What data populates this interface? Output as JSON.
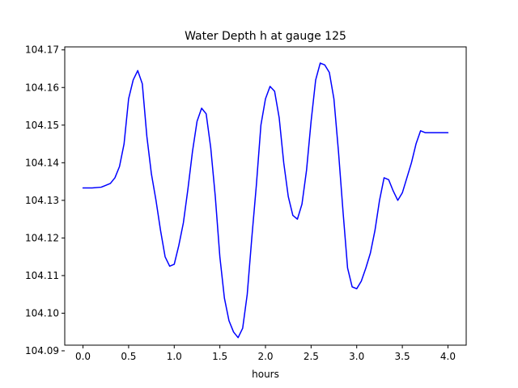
{
  "chart_data": {
    "type": "line",
    "title": "Water Depth h at gauge 125",
    "xlabel": "hours",
    "ylabel": "",
    "xlim": [
      -0.2,
      4.2
    ],
    "ylim": [
      104.0915,
      104.1708
    ],
    "xticks": [
      0.0,
      0.5,
      1.0,
      1.5,
      2.0,
      2.5,
      3.0,
      3.5,
      4.0
    ],
    "xtick_labels": [
      "0.0",
      "0.5",
      "1.0",
      "1.5",
      "2.0",
      "2.5",
      "3.0",
      "3.5",
      "4.0"
    ],
    "yticks": [
      104.09,
      104.1,
      104.11,
      104.12,
      104.13,
      104.14,
      104.15,
      104.16,
      104.17
    ],
    "ytick_labels": [
      "104.09",
      "104.10",
      "104.11",
      "104.12",
      "104.13",
      "104.14",
      "104.15",
      "104.16",
      "104.17"
    ],
    "grid": false,
    "series": [
      {
        "color": "#0000ff",
        "x": [
          0.0,
          0.1,
          0.2,
          0.3,
          0.35,
          0.4,
          0.45,
          0.5,
          0.55,
          0.6,
          0.65,
          0.7,
          0.75,
          0.8,
          0.85,
          0.9,
          0.95,
          1.0,
          1.05,
          1.1,
          1.15,
          1.2,
          1.25,
          1.3,
          1.35,
          1.4,
          1.45,
          1.5,
          1.55,
          1.6,
          1.65,
          1.7,
          1.75,
          1.8,
          1.85,
          1.9,
          1.95,
          2.0,
          2.05,
          2.1,
          2.15,
          2.2,
          2.25,
          2.3,
          2.35,
          2.4,
          2.45,
          2.5,
          2.55,
          2.6,
          2.65,
          2.7,
          2.75,
          2.8,
          2.85,
          2.9,
          2.95,
          3.0,
          3.05,
          3.1,
          3.15,
          3.2,
          3.25,
          3.3,
          3.35,
          3.4,
          3.45,
          3.5,
          3.55,
          3.6,
          3.65,
          3.7,
          3.75,
          3.8,
          3.85,
          3.9,
          3.95,
          4.0
        ],
        "y": [
          104.1333,
          104.1333,
          104.1335,
          104.1345,
          104.136,
          104.139,
          104.145,
          104.157,
          104.162,
          104.1645,
          104.161,
          104.147,
          104.137,
          104.13,
          104.122,
          104.115,
          104.1125,
          104.113,
          104.118,
          104.124,
          104.133,
          104.143,
          104.151,
          104.1545,
          104.153,
          104.144,
          104.131,
          104.115,
          104.104,
          104.098,
          104.095,
          104.0935,
          104.096,
          104.105,
          104.12,
          104.134,
          104.15,
          104.157,
          104.1603,
          104.159,
          104.152,
          104.14,
          104.131,
          104.126,
          104.125,
          104.129,
          104.138,
          104.151,
          104.162,
          104.1665,
          104.166,
          104.164,
          104.157,
          104.143,
          104.127,
          104.112,
          104.107,
          104.1065,
          104.1085,
          104.112,
          104.116,
          104.122,
          104.13,
          104.136,
          104.1355,
          104.1325,
          104.13,
          104.132,
          104.136,
          104.14,
          104.145,
          104.1485,
          104.148,
          104.148,
          104.148,
          104.148,
          104.148,
          104.148
        ]
      }
    ]
  }
}
